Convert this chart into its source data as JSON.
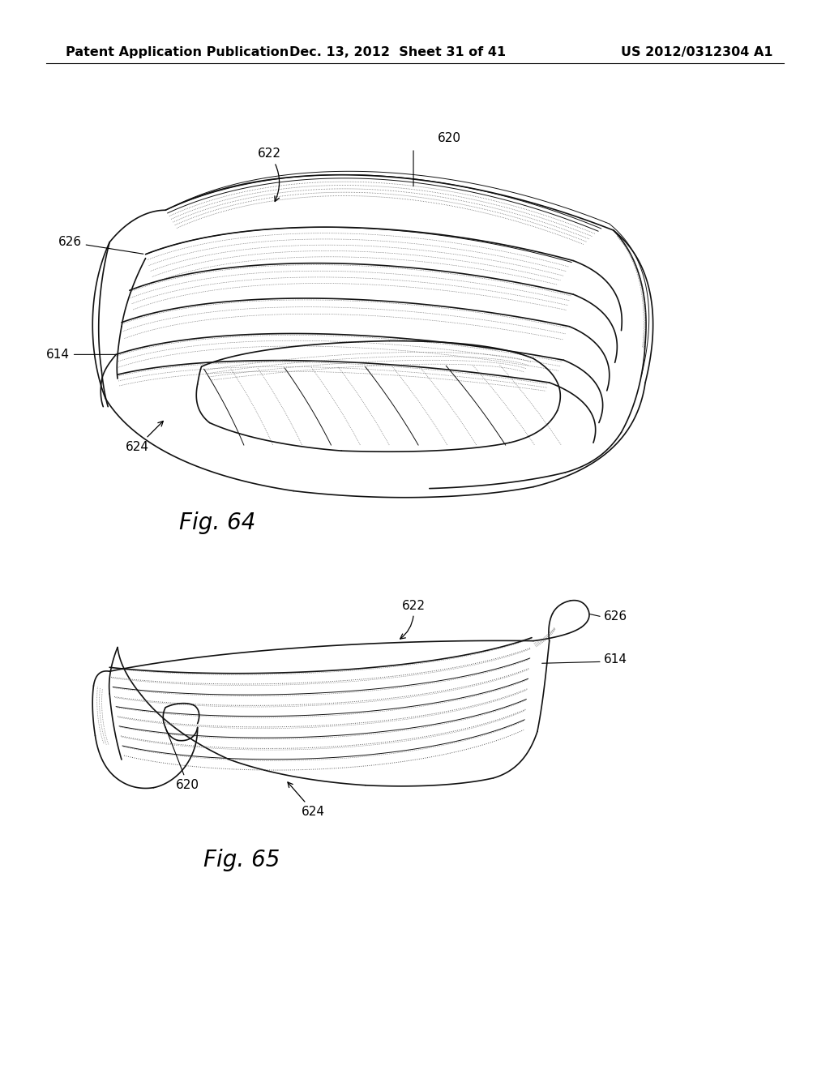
{
  "background_color": "#ffffff",
  "header_left": "Patent Application Publication",
  "header_center": "Dec. 13, 2012  Sheet 31 of 41",
  "header_right": "US 2012/0312304 A1",
  "header_fontsize": 11.5,
  "fig64_label": "Fig. 64",
  "fig65_label": "Fig. 65",
  "fig_label_fontsize": 20,
  "ann_fontsize": 11
}
